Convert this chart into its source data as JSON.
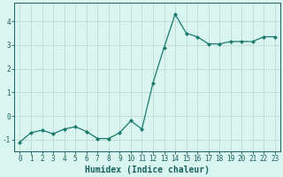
{
  "x": [
    0,
    1,
    2,
    3,
    4,
    5,
    6,
    7,
    8,
    9,
    10,
    11,
    12,
    13,
    14,
    15,
    16,
    17,
    18,
    19,
    20,
    21,
    22,
    23
  ],
  "y": [
    -1.1,
    -0.7,
    -0.6,
    -0.75,
    -0.55,
    -0.45,
    -0.65,
    -0.95,
    -0.95,
    -0.7,
    -0.2,
    -0.55,
    1.4,
    2.9,
    4.3,
    3.5,
    3.35,
    3.05,
    3.05,
    3.15,
    3.15,
    3.15,
    3.35,
    3.35
  ],
  "line_color": "#1a7a6e",
  "marker": "D",
  "marker_size": 2.0,
  "bg_color": "#d8f5f0",
  "grid_color": "#c0d8d4",
  "spine_color": "#1a6060",
  "xlabel": "Humidex (Indice chaleur)",
  "xlim": [
    -0.5,
    23.5
  ],
  "ylim": [
    -1.5,
    4.8
  ],
  "yticks": [
    -1,
    0,
    1,
    2,
    3,
    4
  ],
  "xticks": [
    0,
    1,
    2,
    3,
    4,
    5,
    6,
    7,
    8,
    9,
    10,
    11,
    12,
    13,
    14,
    15,
    16,
    17,
    18,
    19,
    20,
    21,
    22,
    23
  ],
  "tick_label_size": 5.5,
  "xlabel_size": 7.0
}
